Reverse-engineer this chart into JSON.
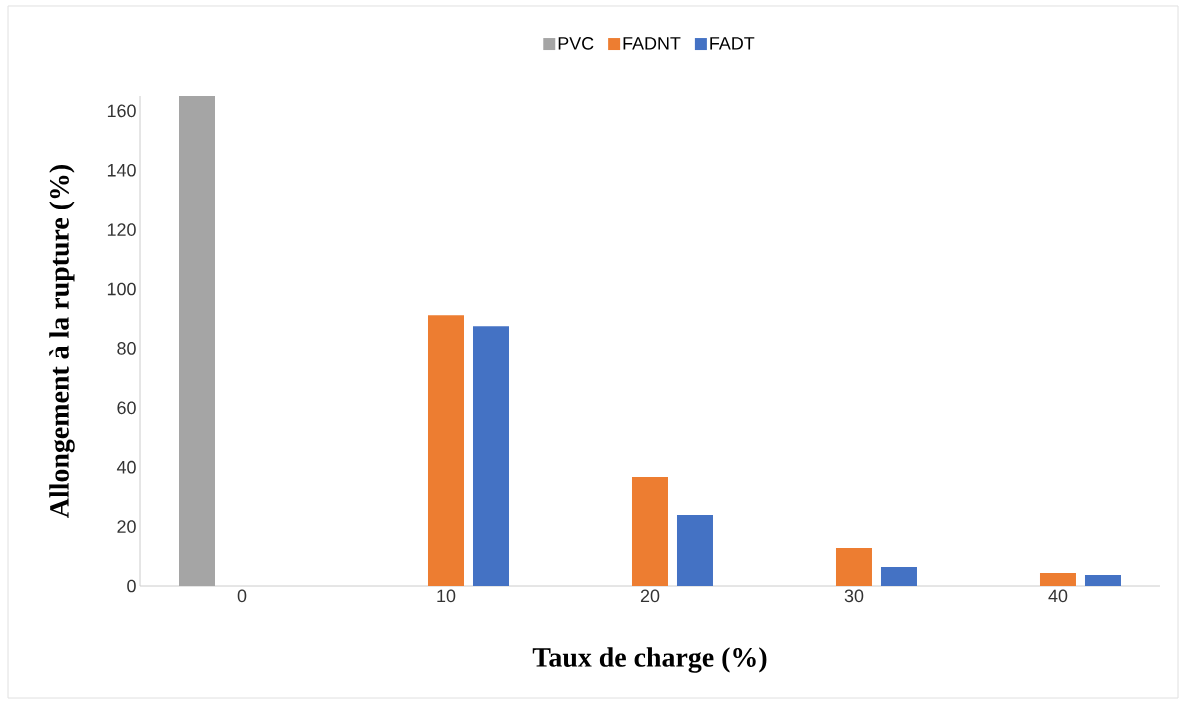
{
  "chart_data": {
    "type": "bar",
    "xlabel": "Taux de charge (%)",
    "ylabel": "Allongement  à la rupture (%)",
    "categories": [
      "0",
      "10",
      "20",
      "30",
      "40"
    ],
    "series": [
      {
        "name": "PVC",
        "color": "#a5a5a5",
        "values": [
          165,
          null,
          null,
          null,
          null
        ]
      },
      {
        "name": "FADNT",
        "color": "#ed7d31",
        "values": [
          null,
          91.2,
          36.7,
          12.8,
          4.4
        ]
      },
      {
        "name": "FADT",
        "color": "#4472c4",
        "values": [
          null,
          87.5,
          23.9,
          6.4,
          3.7
        ]
      }
    ],
    "ylim": [
      0,
      165
    ],
    "yticks": [
      0,
      20,
      40,
      60,
      80,
      100,
      120,
      140,
      160
    ],
    "grid": false,
    "legend": "top"
  }
}
